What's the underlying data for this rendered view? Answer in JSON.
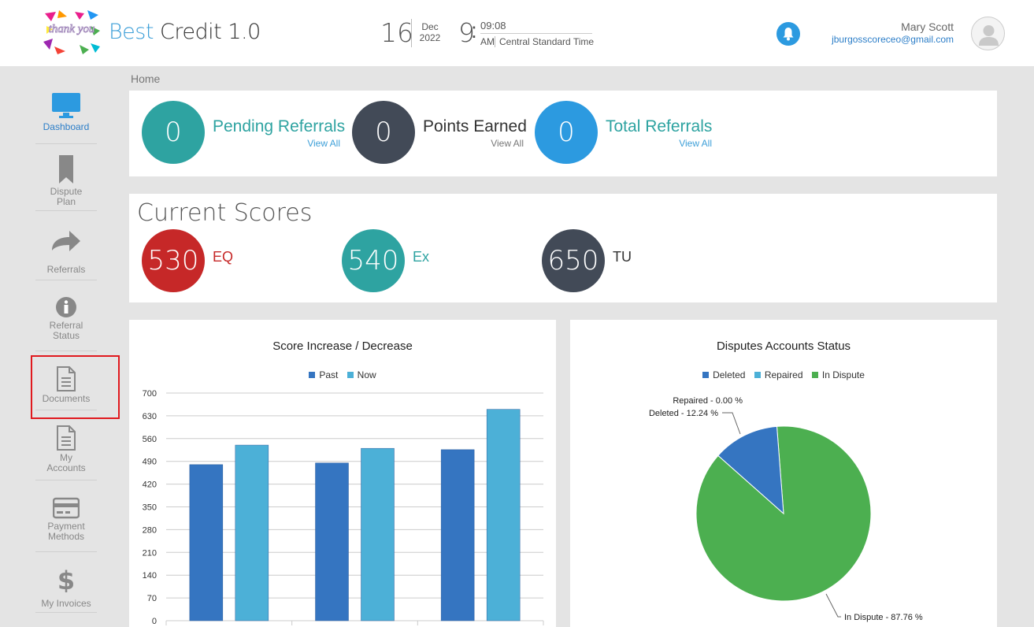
{
  "header": {
    "logo_text": "thank you",
    "brand_accent": "Best",
    "brand_rest": " Credit 1.0",
    "date_day": "16",
    "date_month": "Dec",
    "date_year": "2022",
    "time_hour": "9",
    "time_minutes": "09:08",
    "time_ampm": "AM",
    "time_zone": "Central Standard Time",
    "user_name": "Mary Scott",
    "user_email": "jburgosscoreceo@gmail.com"
  },
  "breadcrumb": "Home",
  "sidebar": {
    "items": [
      {
        "label": "Dashboard",
        "icon": "monitor-icon"
      },
      {
        "label": "Dispute Plan",
        "icon": "bookmark-icon"
      },
      {
        "label": "Referrals",
        "icon": "share-arrow-icon"
      },
      {
        "label": "Referral Status",
        "icon": "info-icon"
      },
      {
        "label": "Documents",
        "icon": "document-icon"
      },
      {
        "label": "My Accounts",
        "icon": "document-icon"
      },
      {
        "label": "Payment Methods",
        "icon": "credit-card-icon"
      },
      {
        "label": "My Invoices",
        "icon": "dollar-icon"
      }
    ]
  },
  "stats": {
    "pending": {
      "value": "0",
      "title": "Pending Referrals",
      "link": "View All"
    },
    "points": {
      "value": "0",
      "title": "Points Earned",
      "link": "View All"
    },
    "total": {
      "value": "0",
      "title": "Total Referrals",
      "link": "View All"
    }
  },
  "scores": {
    "title": "Current Scores",
    "eq": {
      "value": "530",
      "label": "EQ"
    },
    "ex": {
      "value": "540",
      "label": "Ex"
    },
    "tu": {
      "value": "650",
      "label": "TU"
    }
  },
  "colors": {
    "teal": "#2ea3a1",
    "dark": "#424a57",
    "blue": "#2c9ae0",
    "red": "#c62828",
    "past": "#3575c1",
    "now": "#4cb0d7",
    "deleted": "#3575c1",
    "repaired": "#4cb0d7",
    "in_dispute": "#4caf50"
  },
  "chart_data": [
    {
      "type": "bar",
      "title": "Score Increase / Decrease",
      "categories": [
        "",
        "",
        ""
      ],
      "series": [
        {
          "name": "Past",
          "values": [
            480,
            485,
            526
          ]
        },
        {
          "name": "Now",
          "values": [
            540,
            530,
            650
          ]
        }
      ],
      "yticks": [
        0,
        70,
        140,
        210,
        280,
        350,
        420,
        490,
        560,
        630,
        700
      ],
      "ylim": [
        0,
        700
      ],
      "legend": "top-center"
    },
    {
      "type": "pie",
      "title": "Disputes Accounts Status",
      "slices": [
        {
          "name": "Deleted",
          "value": 12.24,
          "label": "Deleted - 12.24 %"
        },
        {
          "name": "Repaired",
          "value": 0.0,
          "label": "Repaired - 0.00 %"
        },
        {
          "name": "In Dispute",
          "value": 87.76,
          "label": "In Dispute - 87.76 %"
        }
      ],
      "legend": "top-center"
    }
  ]
}
